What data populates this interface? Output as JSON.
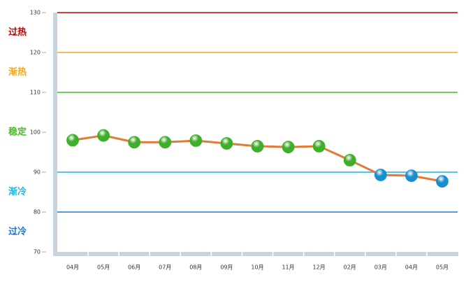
{
  "chart_data": {
    "type": "line",
    "categories": [
      "04月",
      "05月",
      "06月",
      "07月",
      "08月",
      "09月",
      "10月",
      "11月",
      "12月",
      "02月",
      "03月",
      "04月",
      "05月"
    ],
    "series": [
      {
        "color": "#e07b39",
        "values": [
          98,
          99.2,
          97.5,
          97.5,
          97.9,
          97.2,
          96.5,
          96.3,
          96.5,
          93,
          89.3,
          89.1,
          87.7
        ],
        "marker_colors": [
          "#3fae2a",
          "#3fae2a",
          "#3fae2a",
          "#3fae2a",
          "#3fae2a",
          "#3fae2a",
          "#3fae2a",
          "#3fae2a",
          "#3fae2a",
          "#3fae2a",
          "#1a8fd0",
          "#1a8fd0",
          "#1a8fd0"
        ]
      }
    ],
    "ylim": [
      70,
      130
    ],
    "yticks": [
      70,
      80,
      90,
      100,
      110,
      120,
      130
    ],
    "zones": [
      {
        "label": "过热",
        "range": [
          120,
          130
        ],
        "color": "#c00000"
      },
      {
        "label": "渐热",
        "range": [
          110,
          120
        ],
        "color": "#f5a623"
      },
      {
        "label": "稳定",
        "range": [
          90,
          110
        ],
        "color": "#4cb82a"
      },
      {
        "label": "渐冷",
        "range": [
          80,
          90
        ],
        "color": "#1eb4e0"
      },
      {
        "label": "过冷",
        "range": [
          70,
          80
        ],
        "color": "#1f78c8"
      }
    ]
  }
}
